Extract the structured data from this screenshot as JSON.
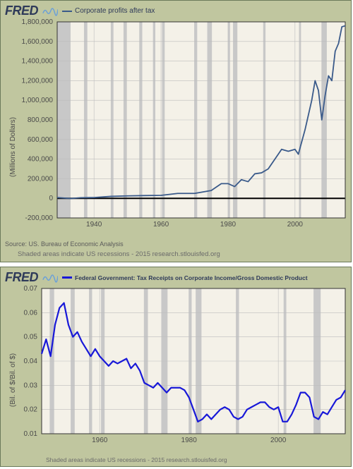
{
  "chart1": {
    "type": "line",
    "logo": "FRED",
    "legend_label": "Corporate profits after tax",
    "legend_color": "#3a5a8a",
    "ylabel": "(Millions of Dollars)",
    "source": "Source: US. Bureau of Economic Analysis",
    "footnote": "Shaded areas indicate US recessions - 2015 research.stlouisfed.org",
    "background_color": "#c0c69f",
    "plot_bg": "#f4f1e8",
    "grid_color": "#bdbdbd",
    "axis_color": "#333333",
    "zero_line_color": "#000000",
    "line_color": "#3a5a8a",
    "line_width": 1.8,
    "recession_color": "#c8c8c8",
    "xlim": [
      1929,
      2015
    ],
    "ylim": [
      -200000,
      1800000
    ],
    "xticks": [
      1940,
      1960,
      1980,
      2000
    ],
    "yticks": [
      -200000,
      0,
      200000,
      400000,
      600000,
      800000,
      1000000,
      1200000,
      1400000,
      1600000,
      1800000
    ],
    "ytick_labels": [
      "-200,000",
      "0",
      "200,000",
      "400,000",
      "600,000",
      "800,000",
      "1,000,000",
      "1,200,000",
      "1,400,000",
      "1,600,000",
      "1,800,000"
    ],
    "recessions": [
      [
        1929,
        1933
      ],
      [
        1937,
        1938
      ],
      [
        1945,
        1945.8
      ],
      [
        1948.8,
        1949.8
      ],
      [
        1953.5,
        1954.4
      ],
      [
        1957.6,
        1958.3
      ],
      [
        1960.3,
        1961.1
      ],
      [
        1969.9,
        1970.8
      ],
      [
        1973.8,
        1975.2
      ],
      [
        1980,
        1980.6
      ],
      [
        1981.5,
        1982.8
      ],
      [
        1990.5,
        1991.2
      ],
      [
        2001.2,
        2001.8
      ],
      [
        2007.9,
        2009.5
      ]
    ],
    "data": [
      [
        1929,
        8000
      ],
      [
        1933,
        -2000
      ],
      [
        1936,
        6000
      ],
      [
        1940,
        8000
      ],
      [
        1945,
        20000
      ],
      [
        1950,
        25000
      ],
      [
        1955,
        28000
      ],
      [
        1960,
        30000
      ],
      [
        1965,
        50000
      ],
      [
        1970,
        50000
      ],
      [
        1975,
        80000
      ],
      [
        1978,
        150000
      ],
      [
        1980,
        150000
      ],
      [
        1982,
        120000
      ],
      [
        1984,
        190000
      ],
      [
        1986,
        170000
      ],
      [
        1988,
        250000
      ],
      [
        1990,
        260000
      ],
      [
        1992,
        300000
      ],
      [
        1994,
        400000
      ],
      [
        1996,
        500000
      ],
      [
        1998,
        480000
      ],
      [
        2000,
        500000
      ],
      [
        2001,
        450000
      ],
      [
        2003,
        700000
      ],
      [
        2005,
        1000000
      ],
      [
        2006,
        1200000
      ],
      [
        2007,
        1100000
      ],
      [
        2008,
        800000
      ],
      [
        2009,
        1050000
      ],
      [
        2010,
        1250000
      ],
      [
        2011,
        1200000
      ],
      [
        2012,
        1500000
      ],
      [
        2013,
        1580000
      ],
      [
        2014,
        1750000
      ],
      [
        2015,
        1760000
      ]
    ]
  },
  "chart2": {
    "type": "line",
    "logo": "FRED",
    "legend_label": "Federal Government: Tax Receipts on Corporate Income/Gross Domestic Product",
    "legend_color": "#1818d8",
    "ylabel": "(Bil. of $/Bil. of $)",
    "footnote": "Shaded areas indicate US recessions - 2015 research.stlouisfed.org",
    "background_color": "#c0c69f",
    "plot_bg": "#f4f1e8",
    "grid_color": "#bdbdbd",
    "axis_color": "#333333",
    "line_color": "#1818d8",
    "line_width": 2.2,
    "recession_color": "#c8c8c8",
    "xlim": [
      1947,
      2015
    ],
    "ylim": [
      0.01,
      0.07
    ],
    "xticks": [
      1960,
      1980,
      2000
    ],
    "yticks": [
      0.01,
      0.02,
      0.03,
      0.04,
      0.05,
      0.06,
      0.07
    ],
    "ytick_labels": [
      "0.01",
      "0.02",
      "0.03",
      "0.04",
      "0.05",
      "0.06",
      "0.07"
    ],
    "recessions": [
      [
        1948.8,
        1949.8
      ],
      [
        1953.5,
        1954.4
      ],
      [
        1957.6,
        1958.3
      ],
      [
        1960.3,
        1961.1
      ],
      [
        1969.9,
        1970.8
      ],
      [
        1973.8,
        1975.2
      ],
      [
        1980,
        1980.6
      ],
      [
        1981.5,
        1982.8
      ],
      [
        1990.5,
        1991.2
      ],
      [
        2001.2,
        2001.8
      ],
      [
        2007.9,
        2009.5
      ]
    ],
    "data": [
      [
        1947,
        0.043
      ],
      [
        1948,
        0.049
      ],
      [
        1949,
        0.042
      ],
      [
        1950,
        0.055
      ],
      [
        1951,
        0.062
      ],
      [
        1952,
        0.064
      ],
      [
        1953,
        0.055
      ],
      [
        1954,
        0.05
      ],
      [
        1955,
        0.052
      ],
      [
        1956,
        0.048
      ],
      [
        1957,
        0.045
      ],
      [
        1958,
        0.042
      ],
      [
        1959,
        0.045
      ],
      [
        1960,
        0.042
      ],
      [
        1961,
        0.04
      ],
      [
        1962,
        0.038
      ],
      [
        1963,
        0.04
      ],
      [
        1964,
        0.039
      ],
      [
        1965,
        0.04
      ],
      [
        1966,
        0.041
      ],
      [
        1967,
        0.037
      ],
      [
        1968,
        0.039
      ],
      [
        1969,
        0.036
      ],
      [
        1970,
        0.031
      ],
      [
        1971,
        0.03
      ],
      [
        1972,
        0.029
      ],
      [
        1973,
        0.031
      ],
      [
        1974,
        0.029
      ],
      [
        1975,
        0.027
      ],
      [
        1976,
        0.029
      ],
      [
        1977,
        0.029
      ],
      [
        1978,
        0.029
      ],
      [
        1979,
        0.028
      ],
      [
        1980,
        0.025
      ],
      [
        1981,
        0.02
      ],
      [
        1982,
        0.015
      ],
      [
        1983,
        0.016
      ],
      [
        1984,
        0.018
      ],
      [
        1985,
        0.016
      ],
      [
        1986,
        0.018
      ],
      [
        1987,
        0.02
      ],
      [
        1988,
        0.021
      ],
      [
        1989,
        0.02
      ],
      [
        1990,
        0.017
      ],
      [
        1991,
        0.016
      ],
      [
        1992,
        0.017
      ],
      [
        1993,
        0.02
      ],
      [
        1994,
        0.021
      ],
      [
        1995,
        0.022
      ],
      [
        1996,
        0.023
      ],
      [
        1997,
        0.023
      ],
      [
        1998,
        0.021
      ],
      [
        1999,
        0.02
      ],
      [
        2000,
        0.021
      ],
      [
        2001,
        0.015
      ],
      [
        2002,
        0.015
      ],
      [
        2003,
        0.018
      ],
      [
        2004,
        0.022
      ],
      [
        2005,
        0.027
      ],
      [
        2006,
        0.027
      ],
      [
        2007,
        0.025
      ],
      [
        2008,
        0.017
      ],
      [
        2009,
        0.016
      ],
      [
        2010,
        0.019
      ],
      [
        2011,
        0.018
      ],
      [
        2012,
        0.021
      ],
      [
        2013,
        0.024
      ],
      [
        2014,
        0.025
      ],
      [
        2015,
        0.028
      ]
    ]
  }
}
